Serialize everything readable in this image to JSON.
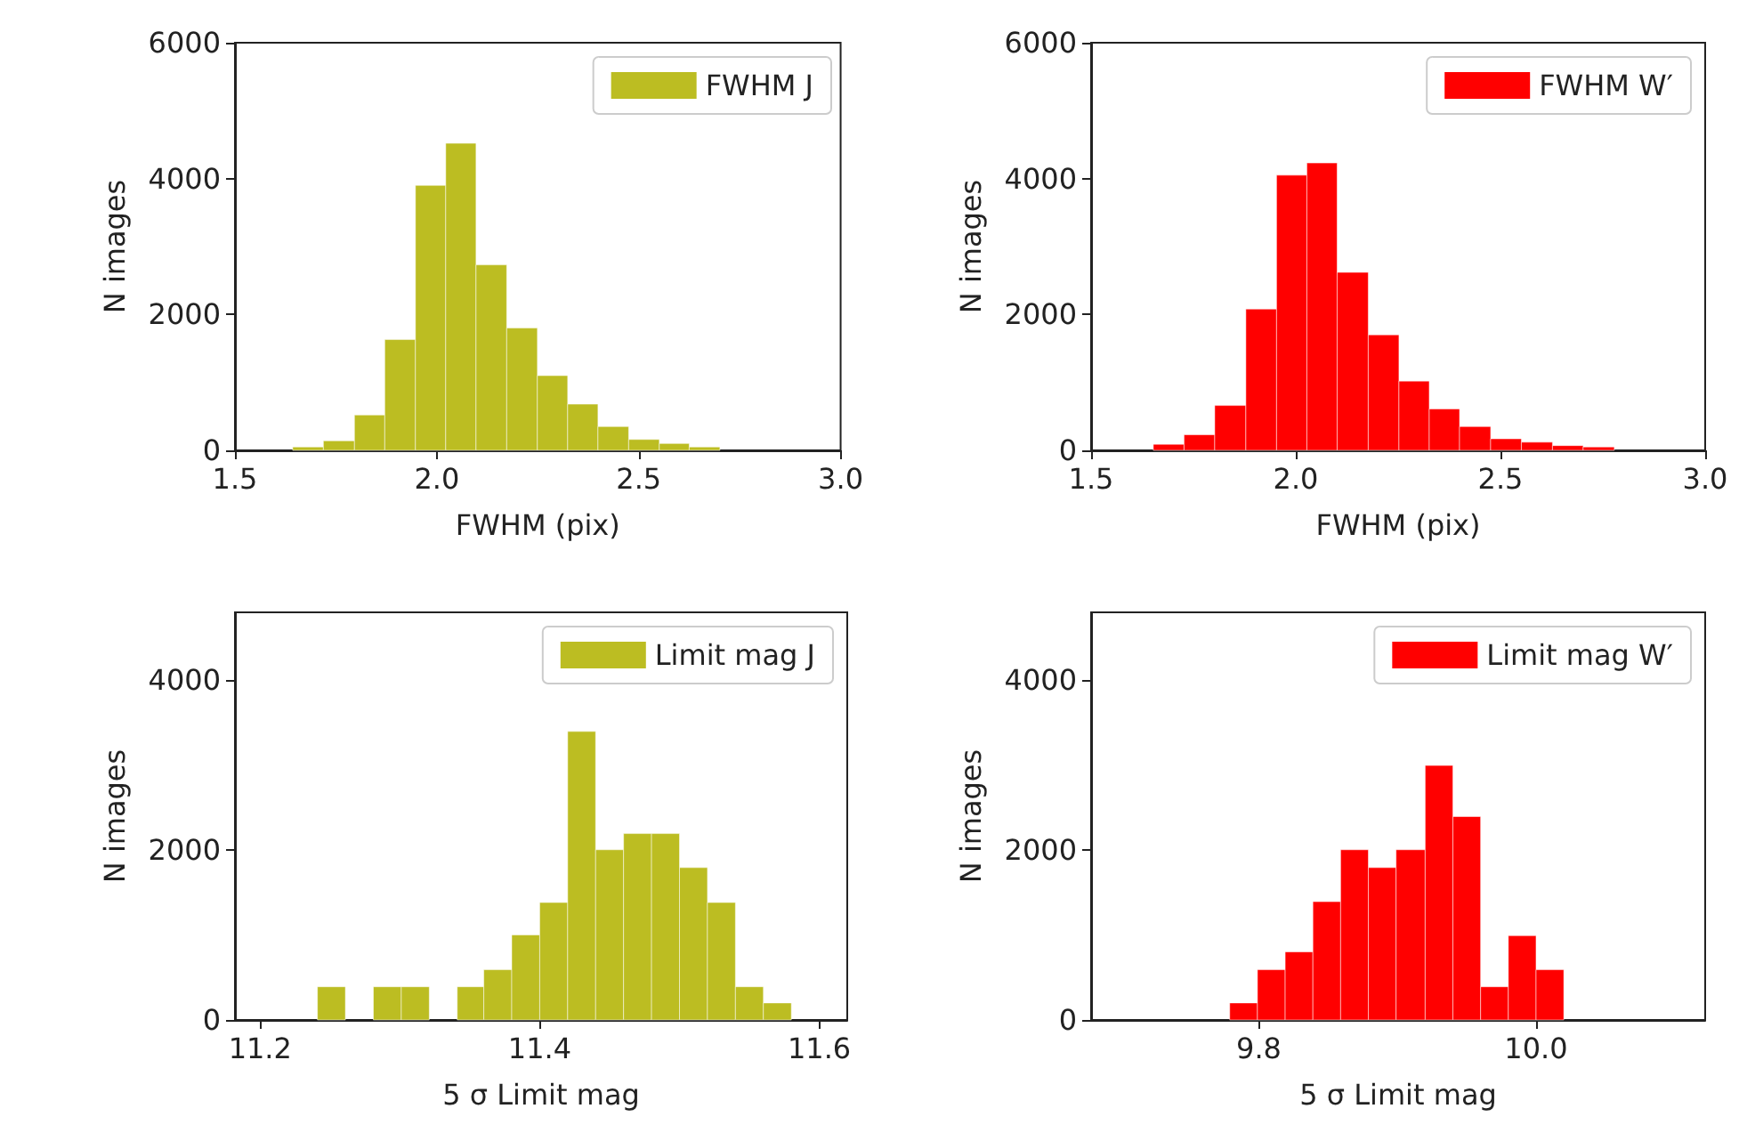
{
  "chart_data": [
    {
      "type": "histogram",
      "xlabel": "FWHM (pix)",
      "ylabel": "N images",
      "bins": [
        1.643,
        1.719,
        1.796,
        1.871,
        1.947,
        2.022,
        2.097,
        2.173,
        2.249,
        2.324,
        2.399,
        2.475,
        2.551,
        2.625,
        2.701
      ],
      "series": [
        {
          "name": "FWHM J",
          "color": "#bcbd22",
          "values": [
            50,
            140,
            520,
            1630,
            3900,
            4520,
            2730,
            1800,
            1100,
            680,
            350,
            160,
            100,
            50
          ]
        }
      ],
      "xlim": [
        1.5,
        3.0
      ],
      "xticks": [
        1.5,
        {
          "value": 2,
          "label": "2.0"
        },
        2.5,
        {
          "value": 3,
          "label": "3.0"
        }
      ],
      "ylim": [
        0,
        6000
      ],
      "yticks": [
        0,
        2000,
        4000,
        6000
      ],
      "grid": false,
      "legend": "top right"
    },
    {
      "type": "histogram",
      "xlabel": "FWHM (pix)",
      "ylabel": "N images",
      "bins": [
        1.652,
        1.727,
        1.802,
        1.878,
        1.953,
        2.027,
        2.101,
        2.177,
        2.252,
        2.326,
        2.4,
        2.476,
        2.551,
        2.627,
        2.702,
        2.778
      ],
      "series": [
        {
          "name": "FWHM W′",
          "color": "#ff0000",
          "values": [
            90,
            230,
            660,
            2080,
            4050,
            4230,
            2620,
            1700,
            1020,
            610,
            350,
            170,
            120,
            70,
            50
          ]
        }
      ],
      "xlim": [
        1.5,
        3.0
      ],
      "xticks": [
        1.5,
        {
          "value": 2,
          "label": "2.0"
        },
        2.5,
        {
          "value": 3,
          "label": "3.0"
        }
      ],
      "ylim": [
        0,
        6000
      ],
      "yticks": [
        0,
        2000,
        4000,
        6000
      ],
      "grid": false,
      "legend": "top right"
    },
    {
      "type": "histogram",
      "xlabel": "5 σ Limit mag",
      "ylabel": "N images",
      "bins": [
        11.241,
        11.261,
        11.281,
        11.301,
        11.321,
        11.341,
        11.36,
        11.38,
        11.4,
        11.42,
        11.44,
        11.46,
        11.48,
        11.5,
        11.52,
        11.54,
        11.56,
        11.58
      ],
      "series": [
        {
          "name": "Limit mag J",
          "color": "#bcbd22",
          "values": [
            390,
            null,
            390,
            390,
            null,
            390,
            590,
            1000,
            1380,
            3390,
            2000,
            2190,
            2190,
            1790,
            1380,
            390,
            200
          ]
        }
      ],
      "xlim": [
        11.182,
        11.62
      ],
      "xticks": [
        11.2,
        11.4,
        11.6
      ],
      "ylim": [
        0,
        4790
      ],
      "yticks": [
        0,
        2000,
        4000
      ],
      "grid": false,
      "legend": "top right"
    },
    {
      "type": "histogram",
      "xlabel": "5 σ Limit mag",
      "ylabel": "N images",
      "bins": [
        9.779,
        9.799,
        9.819,
        9.839,
        9.859,
        9.879,
        9.899,
        9.92,
        9.94,
        9.96,
        9.98,
        10.0,
        10.02
      ],
      "series": [
        {
          "name": "Limit mag W′",
          "color": "#ff0000",
          "values": [
            200,
            590,
            800,
            1390,
            2000,
            1790,
            2000,
            2990,
            2390,
            390,
            990,
            590
          ]
        }
      ],
      "xlim": [
        9.679,
        10.122
      ],
      "xticks": [
        9.8,
        {
          "value": 10,
          "label": "10.0"
        }
      ],
      "ylim": [
        0,
        4790
      ],
      "yticks": [
        0,
        2000,
        4000
      ],
      "grid": false,
      "legend": "top right"
    }
  ]
}
